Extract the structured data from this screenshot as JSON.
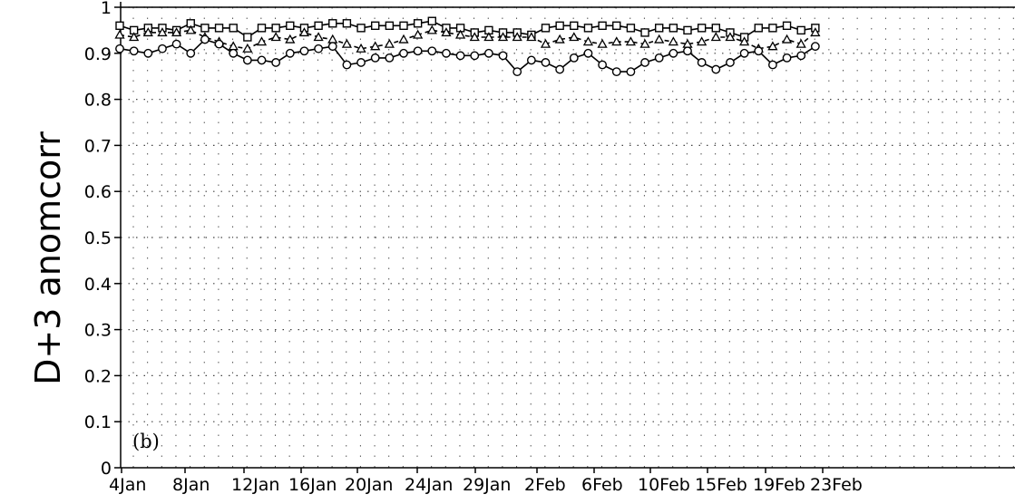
{
  "chart_data": {
    "type": "line",
    "title": "",
    "panel_label": "(b)",
    "ylabel": "D+3 anomcorr",
    "xlabel": "",
    "ylim": [
      0,
      1
    ],
    "yticks": [
      0,
      0.1,
      0.2,
      0.3,
      0.4,
      0.5,
      0.6,
      0.7,
      0.8,
      0.9,
      1
    ],
    "ytick_labels": [
      "0",
      "0.1",
      "0.2",
      "0.3",
      "0.4",
      "0.5",
      "0.6",
      "0.7",
      "0.8",
      "0.9",
      "1"
    ],
    "x_tick_labels": [
      "4Jan",
      "8Jan",
      "12Jan",
      "16Jan",
      "20Jan",
      "24Jan",
      "29Jan",
      "2Feb",
      "6Feb",
      "10Feb",
      "15Feb",
      "19Feb",
      "23Feb"
    ],
    "grid": true,
    "series": [
      {
        "marker": "square",
        "line_style": "solid",
        "values": [
          0.96,
          0.95,
          0.955,
          0.955,
          0.95,
          0.965,
          0.955,
          0.955,
          0.955,
          0.935,
          0.955,
          0.955,
          0.96,
          0.955,
          0.96,
          0.965,
          0.965,
          0.955,
          0.96,
          0.96,
          0.96,
          0.965,
          0.97,
          0.955,
          0.955,
          0.945,
          0.95,
          0.945,
          0.945,
          0.94,
          0.955,
          0.96,
          0.96,
          0.955,
          0.96,
          0.96,
          0.955,
          0.945,
          0.955,
          0.955,
          0.95,
          0.955,
          0.955,
          0.945,
          0.935,
          0.955,
          0.955,
          0.96,
          0.95,
          0.955
        ]
      },
      {
        "marker": "triangle",
        "line_style": "dashed",
        "values": [
          0.94,
          0.935,
          0.945,
          0.945,
          0.945,
          0.95,
          0.935,
          0.925,
          0.915,
          0.91,
          0.925,
          0.935,
          0.93,
          0.945,
          0.935,
          0.93,
          0.92,
          0.91,
          0.915,
          0.92,
          0.93,
          0.94,
          0.95,
          0.945,
          0.94,
          0.935,
          0.935,
          0.935,
          0.935,
          0.935,
          0.92,
          0.93,
          0.935,
          0.925,
          0.92,
          0.925,
          0.925,
          0.92,
          0.93,
          0.925,
          0.92,
          0.925,
          0.935,
          0.935,
          0.925,
          0.91,
          0.915,
          0.93,
          0.92,
          0.945
        ]
      },
      {
        "marker": "circle",
        "line_style": "solid",
        "values": [
          0.91,
          0.905,
          0.9,
          0.91,
          0.92,
          0.9,
          0.93,
          0.92,
          0.9,
          0.885,
          0.885,
          0.88,
          0.9,
          0.905,
          0.91,
          0.915,
          0.875,
          0.88,
          0.89,
          0.89,
          0.9,
          0.905,
          0.905,
          0.9,
          0.895,
          0.895,
          0.9,
          0.895,
          0.86,
          0.885,
          0.88,
          0.865,
          0.89,
          0.9,
          0.875,
          0.86,
          0.86,
          0.88,
          0.89,
          0.9,
          0.905,
          0.88,
          0.865,
          0.88,
          0.9,
          0.905,
          0.875,
          0.89,
          0.895,
          0.915
        ]
      }
    ]
  }
}
